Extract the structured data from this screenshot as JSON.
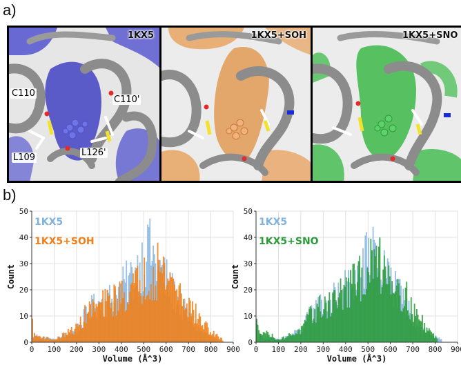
{
  "figure": {
    "panel_a_letter": "a)",
    "panel_b_letter": "b)"
  },
  "snapshots": [
    {
      "label": "1KX5",
      "surface_color": "#5b5bd0",
      "residue_labels": [
        "C110",
        "C110'",
        "L109",
        "L126'"
      ]
    },
    {
      "label": "1KX5+SOH",
      "surface_color": "#e8a463",
      "residue_labels": []
    },
    {
      "label": "1KX5+SNO",
      "surface_color": "#3dba4a",
      "residue_labels": []
    }
  ],
  "colors": {
    "wt": "#7fb2e0",
    "soh": "#f07f18",
    "sno": "#2a9b39",
    "ribbon": "#9a9a9a"
  },
  "chart_data": [
    {
      "type": "bar",
      "xlabel": "Volume (Å^3)",
      "ylabel": "Count",
      "xlim": [
        0,
        900
      ],
      "ylim": [
        0,
        50
      ],
      "xticks": [
        0,
        100,
        200,
        300,
        400,
        500,
        600,
        700,
        800,
        900
      ],
      "yticks": [
        0,
        10,
        20,
        30,
        40,
        50
      ],
      "bin_width": 5,
      "grid": true,
      "legend_placement": "top-left",
      "series": [
        {
          "name": "1KX5",
          "color": "#7fb2e0",
          "peak_x": 520,
          "peak_count": 44,
          "approx_range": [
            0,
            830
          ],
          "profile_x": [
            0,
            100,
            200,
            250,
            300,
            350,
            400,
            450,
            500,
            530,
            550,
            600,
            650,
            700,
            750,
            800,
            850
          ],
          "profile_y": [
            3,
            1,
            5,
            13,
            16,
            18,
            22,
            27,
            35,
            37,
            32,
            25,
            17,
            10,
            5,
            2,
            0
          ]
        },
        {
          "name": "1KX5+SOH",
          "color": "#f07f18",
          "peak_x": 560,
          "peak_count": 38,
          "approx_range": [
            0,
            860
          ],
          "profile_x": [
            0,
            100,
            200,
            250,
            300,
            350,
            400,
            450,
            500,
            550,
            600,
            650,
            700,
            750,
            800,
            850
          ],
          "profile_y": [
            3,
            1,
            6,
            13,
            15,
            17,
            19,
            22,
            26,
            29,
            28,
            22,
            15,
            9,
            4,
            1
          ]
        }
      ]
    },
    {
      "type": "bar",
      "xlabel": "Volume (Å^3)",
      "ylabel": "Count",
      "xlim": [
        0,
        900
      ],
      "ylim": [
        0,
        50
      ],
      "xticks": [
        0,
        100,
        200,
        300,
        400,
        500,
        600,
        700,
        800,
        900
      ],
      "yticks": [
        0,
        10,
        20,
        30,
        40,
        50
      ],
      "bin_width": 5,
      "grid": true,
      "legend_placement": "top-left",
      "series": [
        {
          "name": "1KX5",
          "color": "#7fb2e0",
          "peak_x": 520,
          "peak_count": 44,
          "approx_range": [
            0,
            830
          ],
          "profile_x": [
            0,
            100,
            200,
            250,
            300,
            350,
            400,
            450,
            500,
            530,
            550,
            600,
            650,
            700,
            750,
            800,
            850
          ],
          "profile_y": [
            3,
            1,
            5,
            13,
            16,
            18,
            22,
            27,
            35,
            37,
            32,
            25,
            17,
            10,
            5,
            2,
            0
          ]
        },
        {
          "name": "1KX5+SNO",
          "color": "#2a9b39",
          "peak_x": 550,
          "peak_count": 40,
          "approx_range": [
            0,
            810
          ],
          "profile_x": [
            0,
            100,
            200,
            250,
            300,
            350,
            400,
            450,
            500,
            550,
            600,
            650,
            700,
            750,
            800,
            850
          ],
          "profile_y": [
            6,
            1,
            5,
            12,
            15,
            18,
            21,
            25,
            30,
            33,
            28,
            21,
            13,
            7,
            2,
            0
          ]
        }
      ]
    }
  ]
}
